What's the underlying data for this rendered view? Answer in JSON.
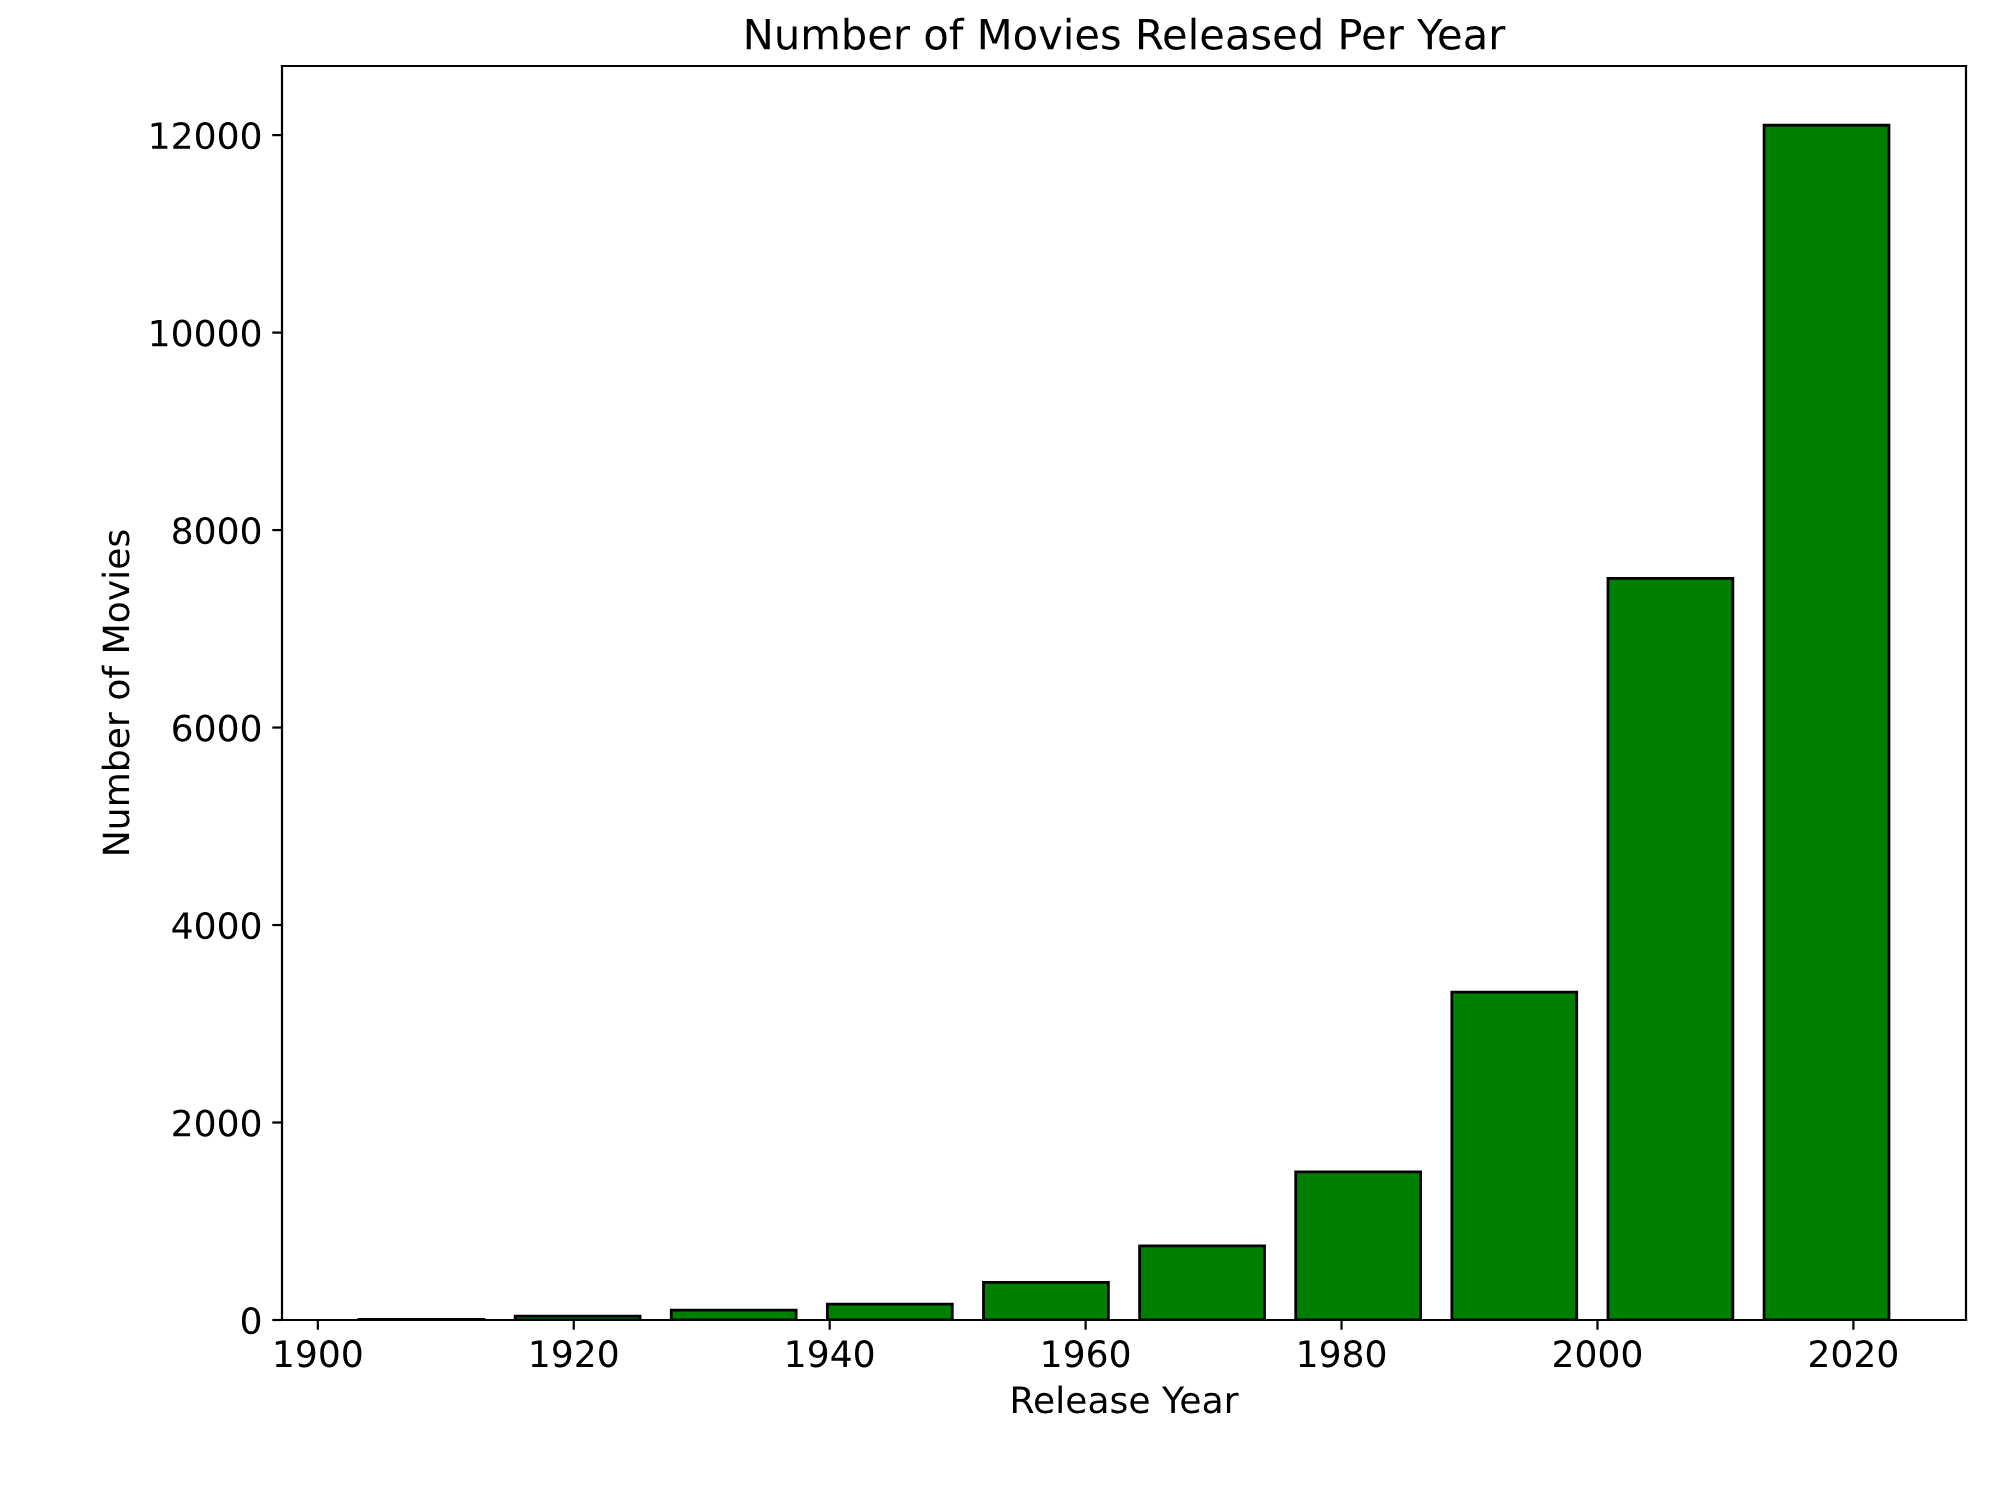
{
  "chart_data": {
    "type": "histogram",
    "title": "Number of Movies Released Per Year",
    "xlabel": "Release Year",
    "ylabel": "Number of Movies",
    "bins": [
      1902,
      1914.2,
      1926.4,
      1938.6,
      1950.8,
      1963,
      1975.2,
      1987.4,
      1999.6,
      2011.8,
      2024
    ],
    "values": [
      5,
      40,
      100,
      160,
      380,
      750,
      1500,
      3320,
      7510,
      12100
    ],
    "color": "#008000",
    "xlim": [
      1897.2,
      2028.8
    ],
    "xticks": [
      1900,
      1920,
      1940,
      1960,
      1980,
      2000,
      2020
    ],
    "ylim": [
      0,
      12700
    ],
    "yticks": [
      0,
      2000,
      4000,
      6000,
      8000,
      10000,
      12000
    ],
    "grid": false
  }
}
